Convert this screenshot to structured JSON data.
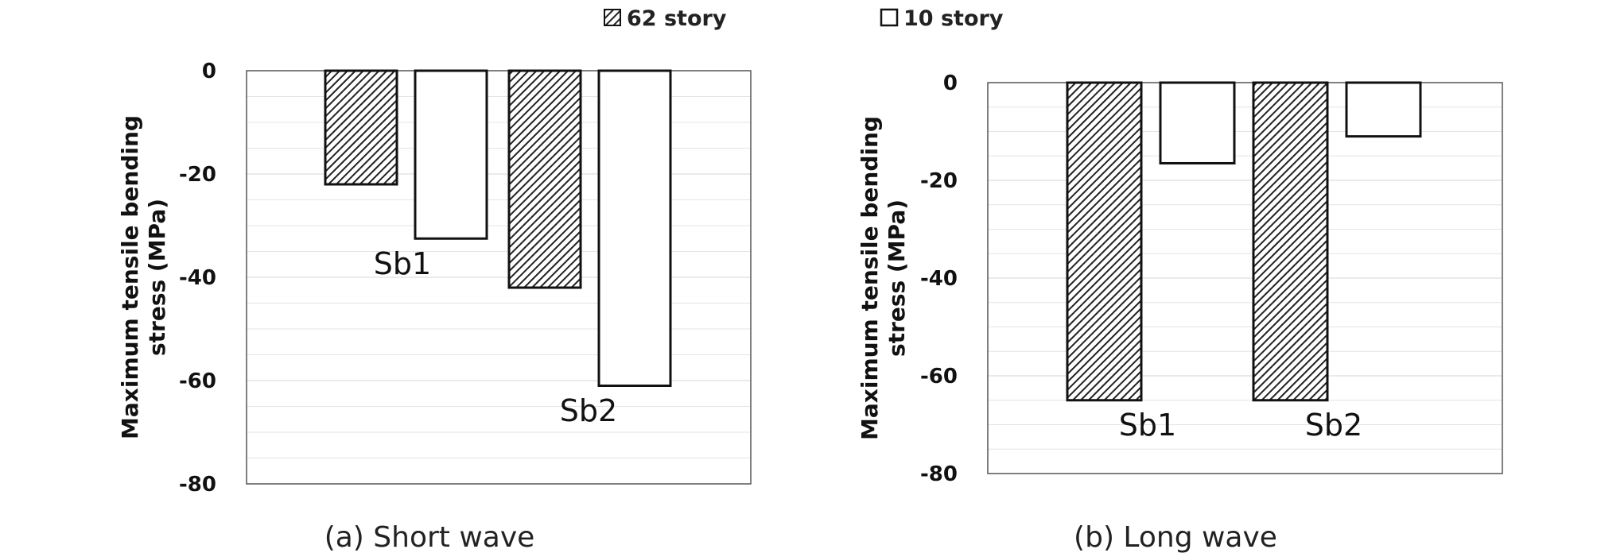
{
  "legend": [
    {
      "label": "62 story",
      "pattern": "hatch"
    },
    {
      "label": "10 story",
      "pattern": "white"
    }
  ],
  "colors": {
    "bar_outline": "#111111",
    "hatch": "#222222",
    "grid": "#e4e4e4",
    "axis": "#555555"
  },
  "chart_data": [
    {
      "type": "bar",
      "caption": "(a) Short wave",
      "ylabel": [
        "Maximum tensile bending",
        "stress (MPa)"
      ],
      "ylim": [
        -80,
        0
      ],
      "yticks": [
        "0",
        "-20",
        "-40",
        "-60",
        "-80"
      ],
      "grid": true,
      "categories": [
        "Sb1",
        "Sb2"
      ],
      "series": [
        {
          "name": "62 story",
          "values": [
            -22,
            -42
          ]
        },
        {
          "name": "10 story",
          "values": [
            -32.5,
            -61
          ]
        }
      ]
    },
    {
      "type": "bar",
      "caption": "(b) Long wave",
      "ylabel": [
        "Maximum tensile bending",
        "stress (MPa)"
      ],
      "ylim": [
        -80,
        0
      ],
      "yticks": [
        "0",
        "-20",
        "-40",
        "-60",
        "-80"
      ],
      "grid": true,
      "categories": [
        "Sb1",
        "Sb2"
      ],
      "series": [
        {
          "name": "62 story",
          "values": [
            -65,
            -65
          ]
        },
        {
          "name": "10 story",
          "values": [
            -16.5,
            -11
          ]
        }
      ]
    }
  ]
}
